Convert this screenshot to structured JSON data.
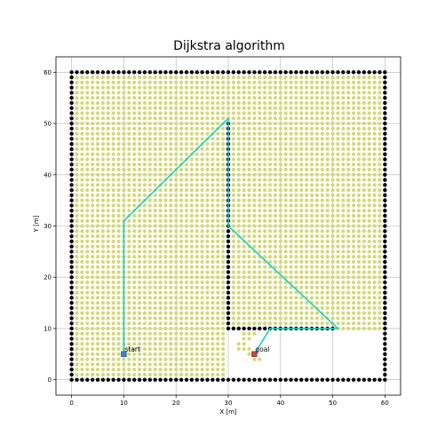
{
  "chart_data": {
    "type": "scatter",
    "title": "Dijkstra algorithm",
    "xlabel": "X [m]",
    "ylabel": "Y [m]",
    "xlim": [
      -3,
      63
    ],
    "ylim": [
      -3,
      63
    ],
    "xticks": [
      0,
      10,
      20,
      30,
      40,
      50,
      60
    ],
    "yticks": [
      0,
      10,
      20,
      30,
      40,
      50,
      60
    ],
    "grid": true,
    "explored_nodes": {
      "color": "#d4d87a",
      "x_range": [
        1,
        59
      ],
      "y_range": [
        1,
        59
      ],
      "excluded_regions": [
        {
          "x": [
            30,
            59
          ],
          "y": [
            1,
            9
          ],
          "note": "unvisited lower-right pocket"
        }
      ],
      "extra_points": [
        [
          33,
          9
        ],
        [
          34,
          9
        ],
        [
          35,
          9
        ],
        [
          33,
          8
        ],
        [
          34,
          8
        ],
        [
          32,
          7
        ],
        [
          33,
          7
        ],
        [
          32,
          6
        ],
        [
          33,
          6
        ],
        [
          34,
          6
        ],
        [
          34,
          5
        ],
        [
          35,
          5
        ],
        [
          35,
          4
        ],
        [
          36,
          4
        ]
      ]
    },
    "obstacles": {
      "color": "#000000",
      "walls": [
        {
          "from": [
            0,
            0
          ],
          "to": [
            60,
            0
          ]
        },
        {
          "from": [
            0,
            60
          ],
          "to": [
            60,
            60
          ]
        },
        {
          "from": [
            0,
            0
          ],
          "to": [
            0,
            60
          ]
        },
        {
          "from": [
            60,
            0
          ],
          "to": [
            60,
            60
          ]
        },
        {
          "from": [
            30,
            10
          ],
          "to": [
            30,
            50
          ]
        },
        {
          "from": [
            30,
            10
          ],
          "to": [
            50,
            10
          ]
        }
      ]
    },
    "path": {
      "color": "#1fcfbf",
      "points": [
        [
          10,
          5
        ],
        [
          10,
          31
        ],
        [
          30,
          51
        ],
        [
          30,
          30
        ],
        [
          51,
          10
        ],
        [
          38,
          10
        ],
        [
          35,
          5
        ]
      ]
    },
    "start": {
      "label": "start",
      "x": 10,
      "y": 5,
      "color": "#3b82c4"
    },
    "goal": {
      "label": "goal",
      "x": 35,
      "y": 5,
      "color": "#d0404c"
    }
  }
}
